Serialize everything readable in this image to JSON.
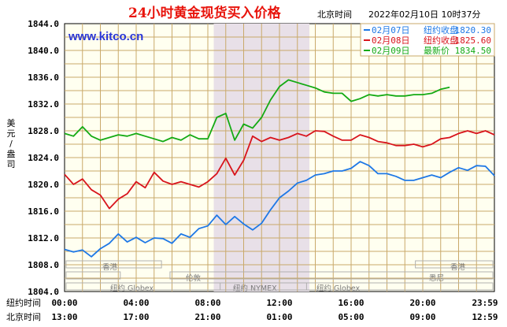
{
  "header": {
    "title": "24小时黄金现货买入价格",
    "location_label": "北京时间",
    "datetime": "2022年02月10日 10时37分",
    "website": "www.kitco.cn"
  },
  "colors": {
    "plot_bg": "#fffff0",
    "grid": "#c9a96a",
    "shade": "#e8e0e8",
    "blue": "#1e78e6",
    "red": "#d8141c",
    "green": "#14aa14",
    "title": "#e8140c",
    "site": "#2a36d6"
  },
  "legend": [
    {
      "date": "02月07日",
      "label": "纽约收盘",
      "value": "1820.30",
      "color": "#1e78e6"
    },
    {
      "date": "02月08日",
      "label": "纽约收盘",
      "value": "1825.60",
      "color": "#d8141c"
    },
    {
      "date": "02月09日",
      "label": "最新价",
      "value": "1834.50",
      "color": "#14aa14"
    }
  ],
  "axis": {
    "ylabel": "美元/盎司",
    "tz_ny": "纽约时间",
    "tz_bj": "北京时间"
  },
  "markets": {
    "hk": "香港",
    "ny": "纽约 Globex",
    "london": "伦敦",
    "nymex": "纽约 NYMEX",
    "sydney": "悉尼"
  },
  "chart_data": {
    "type": "line",
    "title": "24小时黄金现货买入价格",
    "ylabel": "美元/盎司",
    "ylim": [
      1804,
      1844
    ],
    "yticks": [
      "1844.0",
      "1840.0",
      "1836.0",
      "1832.0",
      "1828.0",
      "1824.0",
      "1820.0",
      "1816.0",
      "1812.0",
      "1808.0",
      "1804.0"
    ],
    "xlim": [
      0,
      24
    ],
    "xticks_ny": [
      "00:00",
      "04:00",
      "08:00",
      "12:00",
      "16:00",
      "20:00",
      "23:59"
    ],
    "xticks_bj": [
      "13:00",
      "17:00",
      "21:00",
      "01:00",
      "05:00",
      "09:00",
      "12:59"
    ],
    "grid": true,
    "legend_position": "top-right",
    "shaded_range_hours": [
      8.33,
      13.67
    ],
    "series": [
      {
        "name": "02月07日",
        "color": "#1e78e6",
        "x": [
          0,
          0.5,
          1,
          1.5,
          2,
          2.5,
          3,
          3.5,
          4,
          4.5,
          5,
          5.5,
          6,
          6.5,
          7,
          7.5,
          8,
          8.5,
          9,
          9.5,
          10,
          10.5,
          11,
          11.5,
          12,
          12.5,
          13,
          13.5,
          14,
          14.5,
          15,
          15.5,
          16,
          16.5,
          17,
          17.5,
          18,
          18.5,
          19,
          19.5,
          20,
          20.5,
          21,
          21.5,
          22,
          22.5,
          23,
          23.5,
          24
        ],
        "values": [
          1810.3,
          1809.9,
          1810.2,
          1809.2,
          1810.4,
          1811.2,
          1812.6,
          1811.4,
          1812.1,
          1811.3,
          1812.0,
          1811.9,
          1811.2,
          1812.6,
          1812.1,
          1813.4,
          1813.8,
          1815.4,
          1814.0,
          1815.2,
          1814.1,
          1813.2,
          1814.2,
          1816.2,
          1818.0,
          1819.0,
          1820.2,
          1820.6,
          1821.4,
          1821.6,
          1822.0,
          1822.0,
          1822.4,
          1823.4,
          1822.8,
          1821.6,
          1821.6,
          1821.2,
          1820.6,
          1820.6,
          1821.0,
          1821.4,
          1821.0,
          1821.8,
          1822.5,
          1822.1,
          1822.8,
          1822.7,
          1821.3
        ]
      },
      {
        "name": "02月08日",
        "color": "#d8141c",
        "x": [
          0,
          0.5,
          1,
          1.5,
          2,
          2.5,
          3,
          3.5,
          4,
          4.5,
          5,
          5.5,
          6,
          6.5,
          7,
          7.5,
          8,
          8.5,
          9,
          9.5,
          10,
          10.5,
          11,
          11.5,
          12,
          12.5,
          13,
          13.5,
          14,
          14.5,
          15,
          15.5,
          16,
          16.5,
          17,
          17.5,
          18,
          18.5,
          19,
          19.5,
          20,
          20.5,
          21,
          21.5,
          22,
          22.5,
          23,
          23.5,
          24
        ],
        "values": [
          1821.5,
          1820.0,
          1820.8,
          1819.2,
          1818.4,
          1816.4,
          1817.8,
          1818.6,
          1820.4,
          1819.5,
          1821.8,
          1820.5,
          1820.0,
          1820.4,
          1820.0,
          1819.6,
          1820.4,
          1821.6,
          1823.9,
          1821.4,
          1823.6,
          1827.2,
          1826.4,
          1827.0,
          1826.6,
          1827.0,
          1827.6,
          1827.2,
          1828.0,
          1827.9,
          1827.2,
          1826.6,
          1826.6,
          1827.4,
          1827.0,
          1826.4,
          1826.2,
          1825.8,
          1825.8,
          1826.0,
          1825.6,
          1826.0,
          1826.8,
          1827.0,
          1827.6,
          1828.0,
          1827.6,
          1828.0,
          1827.4
        ]
      },
      {
        "name": "02月09日",
        "color": "#14aa14",
        "x": [
          0,
          0.5,
          1,
          1.5,
          2,
          2.5,
          3,
          3.5,
          4,
          4.5,
          5,
          5.5,
          6,
          6.5,
          7,
          7.5,
          8,
          8.5,
          9,
          9.5,
          10,
          10.5,
          11,
          11.5,
          12,
          12.5,
          13,
          13.5,
          14,
          14.5,
          15,
          15.5,
          16,
          16.5,
          17,
          17.5,
          18,
          18.5,
          19,
          19.5,
          20,
          20.5,
          21,
          21.5
        ],
        "values": [
          1827.6,
          1827.2,
          1828.6,
          1827.2,
          1826.6,
          1827.0,
          1827.4,
          1827.2,
          1827.6,
          1827.2,
          1826.8,
          1826.4,
          1827.0,
          1826.6,
          1827.4,
          1826.8,
          1826.8,
          1830.0,
          1830.6,
          1826.6,
          1829.0,
          1828.4,
          1830.0,
          1832.6,
          1834.6,
          1835.6,
          1835.2,
          1834.8,
          1834.4,
          1833.8,
          1833.6,
          1833.6,
          1832.4,
          1832.8,
          1833.4,
          1833.2,
          1833.4,
          1833.2,
          1833.2,
          1833.4,
          1833.4,
          1833.6,
          1834.2,
          1834.5
        ]
      }
    ]
  }
}
